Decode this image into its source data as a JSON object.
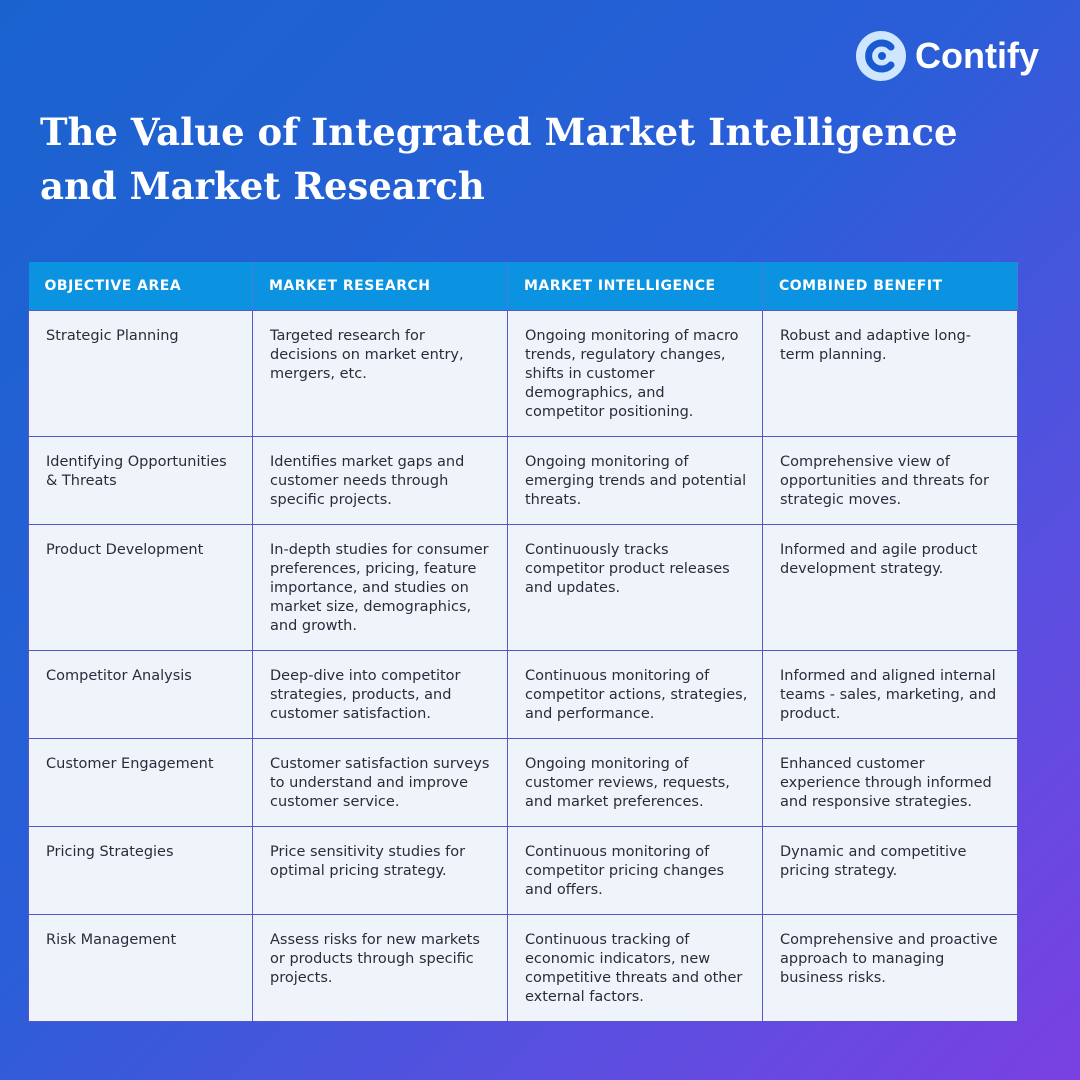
{
  "logo": {
    "text": "Contify"
  },
  "header": {
    "title_line1": "The Value of Integrated Market Intelligence",
    "title_line2": "and Market Research"
  },
  "table": {
    "headers": [
      "OBJECTIVE AREA",
      "MARKET RESEARCH",
      "MARKET INTELLIGENCE",
      "COMBINED BENEFIT"
    ],
    "rows": [
      [
        "Strategic Planning",
        "Targeted research for decisions on market entry, mergers, etc.",
        "Ongoing monitoring of macro trends, regulatory changes, shifts in customer demographics, and competitor positioning.",
        "Robust and adaptive long-term planning."
      ],
      [
        "Identifying Opportunities & Threats",
        "Identifies market gaps and customer needs through specific projects.",
        "Ongoing monitoring of emerging trends and potential threats.",
        "Comprehensive view of opportunities and threats for strategic moves."
      ],
      [
        "Product Development",
        "In-depth studies for consumer preferences, pricing, feature importance, and studies on market size, demographics, and growth.",
        "Continuously tracks competitor product releases and updates.",
        "Informed and agile product development strategy."
      ],
      [
        "Competitor Analysis",
        "Deep-dive into competitor strategies, products, and customer satisfaction.",
        "Continuous monitoring of competitor actions, strategies, and performance.",
        "Informed and aligned internal teams - sales, marketing, and product."
      ],
      [
        "Customer Engagement",
        "Customer satisfaction surveys to understand and improve customer service.",
        "Ongoing monitoring of customer reviews, requests, and market preferences.",
        "Enhanced customer experience through informed and responsive strategies."
      ],
      [
        "Pricing Strategies",
        "Price sensitivity studies for optimal pricing strategy.",
        "Continuous monitoring of competitor pricing changes and offers.",
        "Dynamic and competitive pricing strategy."
      ],
      [
        "Risk Management",
        "Assess risks for new markets or products through specific projects.",
        "Continuous tracking of economic indicators, new competitive threats and other external factors.",
        "Comprehensive and proactive approach to managing business risks."
      ]
    ]
  }
}
